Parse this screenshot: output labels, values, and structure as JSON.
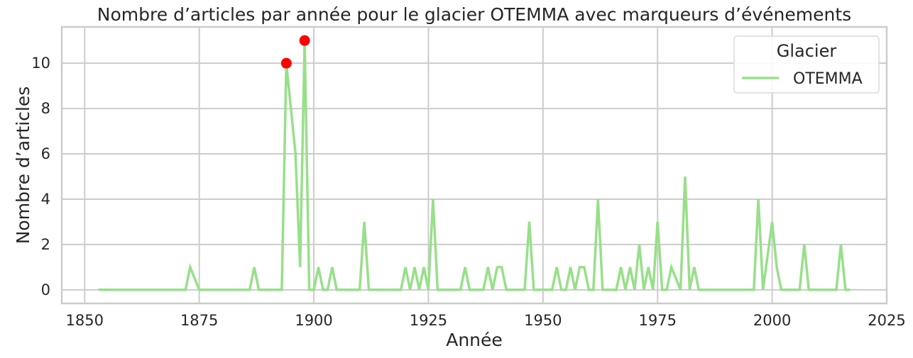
{
  "chart_data": {
    "type": "line",
    "title": "Nombre d’articles par année pour le glacier OTEMMA avec marqueurs d’événements",
    "xlabel": "Année",
    "ylabel": "Nombre d’articles",
    "xlim": [
      1845,
      2025
    ],
    "ylim": [
      -0.6,
      11.6
    ],
    "xticks": [
      1850,
      1875,
      1900,
      1925,
      1950,
      1975,
      2000,
      2025
    ],
    "yticks": [
      0,
      2,
      4,
      6,
      8,
      10
    ],
    "grid": true,
    "legend": {
      "title": "Glacier",
      "position": "top-right"
    },
    "series": [
      {
        "name": "OTEMMA",
        "color": "#98df8a",
        "x": [
          1853,
          1872,
          1873,
          1875,
          1886,
          1887,
          1888,
          1893,
          1894,
          1896,
          1897,
          1898,
          1899,
          1900,
          1901,
          1902,
          1903,
          1904,
          1905,
          1910,
          1911,
          1912,
          1919,
          1920,
          1921,
          1922,
          1923,
          1924,
          1925,
          1926,
          1927,
          1932,
          1933,
          1934,
          1937,
          1938,
          1939,
          1940,
          1941,
          1942,
          1943,
          1946,
          1947,
          1948,
          1952,
          1953,
          1954,
          1955,
          1956,
          1957,
          1958,
          1959,
          1960,
          1961,
          1962,
          1963,
          1965,
          1966,
          1967,
          1968,
          1969,
          1970,
          1971,
          1972,
          1973,
          1974,
          1975,
          1976,
          1977,
          1978,
          1980,
          1981,
          1982,
          1983,
          1984,
          1996,
          1997,
          1998,
          2000,
          2001,
          2002,
          2006,
          2007,
          2008,
          2014,
          2015,
          2016,
          2017
        ],
        "y": [
          0,
          0,
          1,
          0,
          0,
          1,
          0,
          0,
          10,
          6,
          1,
          11,
          0,
          0,
          1,
          0,
          0,
          1,
          0,
          0,
          3,
          0,
          0,
          1,
          0,
          1,
          0,
          1,
          0,
          4,
          0,
          0,
          1,
          0,
          0,
          1,
          0,
          1,
          1,
          0,
          0,
          0,
          3,
          0,
          0,
          1,
          0,
          0,
          1,
          0,
          1,
          1,
          0,
          0,
          4,
          0,
          0,
          0,
          1,
          0,
          1,
          0,
          2,
          0,
          1,
          0,
          3,
          0,
          0,
          1,
          0,
          5,
          0,
          1,
          0,
          0,
          4,
          0,
          3,
          1,
          0,
          0,
          2,
          0,
          0,
          2,
          0,
          0
        ]
      }
    ],
    "markers": {
      "color": "#ff0000",
      "points": [
        {
          "x": 1894,
          "y": 10
        },
        {
          "x": 1898,
          "y": 11
        }
      ]
    }
  }
}
